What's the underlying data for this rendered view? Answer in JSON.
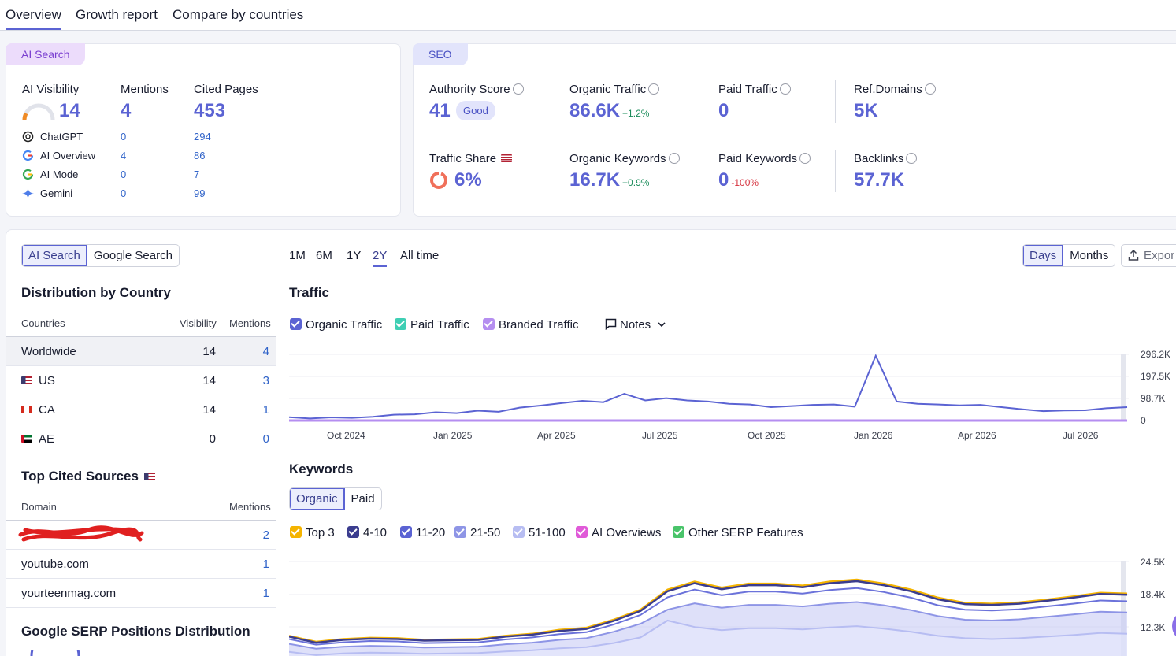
{
  "tabs": [
    "Overview",
    "Growth report",
    "Compare by countries"
  ],
  "ai_card": {
    "pill": "AI Search",
    "visibility_label": "AI Visibility",
    "visibility_value": "14",
    "mentions_label": "Mentions",
    "mentions_value": "4",
    "cited_label": "Cited Pages",
    "cited_value": "453",
    "sources": [
      {
        "name": "ChatGPT",
        "mentions": "0",
        "cited": "294",
        "icon": "chatgpt-icon"
      },
      {
        "name": "AI Overview",
        "mentions": "4",
        "cited": "86",
        "icon": "google-icon"
      },
      {
        "name": "AI Mode",
        "mentions": "0",
        "cited": "7",
        "icon": "google-icon"
      },
      {
        "name": "Gemini",
        "mentions": "0",
        "cited": "99",
        "icon": "gemini-icon"
      }
    ]
  },
  "seo_card": {
    "pill": "SEO",
    "authority_label": "Authority Score",
    "authority_value": "41",
    "authority_badge": "Good",
    "organic_label": "Organic Traffic",
    "organic_value": "86.6K",
    "organic_delta": "+1.2%",
    "paid_label": "Paid Traffic",
    "paid_value": "0",
    "refdomains_label": "Ref.Domains",
    "refdomains_value": "5K",
    "share_label": "Traffic Share",
    "share_value": "6%",
    "okw_label": "Organic Keywords",
    "okw_value": "16.7K",
    "okw_delta": "+0.9%",
    "pkw_label": "Paid Keywords",
    "pkw_value": "0",
    "pkw_delta": "-100%",
    "backlinks_label": "Backlinks",
    "backlinks_value": "57.7K"
  },
  "left": {
    "toggle": [
      "AI Search",
      "Google Search"
    ],
    "dist_title": "Distribution by Country",
    "col_countries": "Countries",
    "col_visibility": "Visibility",
    "col_mentions": "Mentions",
    "countries": [
      {
        "name": "Worldwide",
        "visibility": "14",
        "mentions": "4"
      },
      {
        "name": "US",
        "visibility": "14",
        "mentions": "3"
      },
      {
        "name": "CA",
        "visibility": "14",
        "mentions": "1"
      },
      {
        "name": "AE",
        "visibility": "0",
        "mentions": "0"
      }
    ],
    "sources_title": "Top Cited Sources",
    "col_domain": "Domain",
    "col_src_mentions": "Mentions",
    "domains": [
      {
        "name": "",
        "mentions": "2"
      },
      {
        "name": "youtube.com",
        "mentions": "1"
      },
      {
        "name": "yourteenmag.com",
        "mentions": "1"
      }
    ],
    "serp_title": "Google SERP Positions Distribution"
  },
  "ranges": [
    "1M",
    "6M",
    "1Y",
    "2Y",
    "All time"
  ],
  "view_toggle": [
    "Days",
    "Months"
  ],
  "export_label": "Expor",
  "traffic_title": "Traffic",
  "traffic_legend": [
    "Organic Traffic",
    "Paid Traffic",
    "Branded Traffic"
  ],
  "notes_label": "Notes",
  "traffic_x_ticks": [
    "Oct 2024",
    "Jan 2025",
    "Apr 2025",
    "Jul 2025",
    "Oct 2025",
    "Jan 2026",
    "Apr 2026",
    "Jul 2026"
  ],
  "traffic_y_ticks": [
    "296.2K",
    "197.5K",
    "98.7K",
    "0"
  ],
  "keywords_title": "Keywords",
  "kw_toggle": [
    "Organic",
    "Paid"
  ],
  "kw_legend": [
    {
      "label": "Top 3",
      "color": "#f5b400"
    },
    {
      "label": "4-10",
      "color": "#3b3d8f"
    },
    {
      "label": "11-20",
      "color": "#5b63d3"
    },
    {
      "label": "21-50",
      "color": "#8e95e6"
    },
    {
      "label": "51-100",
      "color": "#b7bdf2"
    },
    {
      "label": "AI Overviews",
      "color": "#e05ad8"
    },
    {
      "label": "Other SERP Features",
      "color": "#49c46a"
    }
  ],
  "kw_y_ticks": [
    "24.5K",
    "18.4K",
    "12.3K"
  ],
  "chart_data": [
    {
      "type": "line",
      "title": "Traffic",
      "series": [
        {
          "name": "Organic Traffic",
          "values": [
            15000,
            9000,
            14000,
            12000,
            17000,
            26000,
            28000,
            37000,
            33000,
            44000,
            39000,
            58000,
            67000,
            78000,
            88000,
            82000,
            120000,
            90000,
            100000,
            90000,
            85000,
            75000,
            72000,
            60000,
            65000,
            70000,
            72000,
            62000,
            290000,
            85000,
            75000,
            72000,
            68000,
            70000,
            60000,
            50000,
            42000,
            45000,
            46000,
            55000,
            60000
          ]
        },
        {
          "name": "Paid Traffic",
          "values": [
            0,
            0,
            0,
            0,
            0,
            0,
            0,
            0,
            0,
            0,
            0,
            0,
            0,
            0,
            0,
            0,
            0,
            0,
            0,
            0,
            0,
            0,
            0,
            0,
            0,
            0,
            0,
            0,
            0,
            0,
            0,
            0,
            0,
            0,
            0,
            0,
            0,
            0,
            0,
            0,
            0
          ]
        },
        {
          "name": "Branded Traffic",
          "values": [
            0,
            0,
            0,
            0,
            0,
            0,
            0,
            0,
            0,
            0,
            0,
            0,
            0,
            0,
            0,
            0,
            0,
            0,
            0,
            0,
            0,
            0,
            0,
            0,
            0,
            0,
            0,
            0,
            0,
            0,
            0,
            0,
            0,
            0,
            0,
            0,
            0,
            0,
            0,
            0,
            0
          ]
        }
      ],
      "ylim": [
        0,
        296200
      ]
    },
    {
      "type": "area",
      "title": "Keywords",
      "series": [
        {
          "name": "Top 3",
          "values": [
            6000,
            4500,
            5200,
            5500,
            5400,
            5000,
            5100,
            5200,
            6000,
            6500,
            7500,
            8000,
            10000,
            12500,
            17500,
            19500,
            18000,
            19000,
            19000,
            18500,
            19500,
            20000,
            19000,
            17500,
            15500,
            14200,
            14000,
            14300,
            15000,
            15800,
            16700,
            16500
          ]
        },
        {
          "name": "4-10",
          "values": [
            5800,
            4300,
            5000,
            5300,
            5200,
            4800,
            4900,
            5000,
            5800,
            6300,
            7200,
            7700,
            9700,
            12200,
            17100,
            19100,
            17600,
            18600,
            18600,
            18100,
            19100,
            19600,
            18600,
            17100,
            15100,
            13900,
            13700,
            14000,
            14700,
            15500,
            16400,
            16200
          ]
        },
        {
          "name": "11-20",
          "values": [
            5200,
            3800,
            4400,
            4700,
            4600,
            4200,
            4300,
            4400,
            5100,
            5600,
            6400,
            6900,
            8800,
            11200,
            15600,
            17500,
            16100,
            17000,
            17000,
            16500,
            17400,
            17900,
            16900,
            15500,
            13600,
            12500,
            12300,
            12600,
            13300,
            14000,
            14800,
            14600
          ]
        },
        {
          "name": "21-50",
          "values": [
            4000,
            2800,
            3300,
            3500,
            3400,
            3100,
            3200,
            3300,
            3900,
            4300,
            5000,
            5400,
            7000,
            9000,
            12500,
            14100,
            13000,
            13700,
            13700,
            13300,
            14000,
            14400,
            13600,
            12400,
            10900,
            10000,
            9800,
            10100,
            10700,
            11300,
            12000,
            11800
          ]
        },
        {
          "name": "51-100",
          "values": [
            2000,
            1200,
            1600,
            1800,
            1700,
            1500,
            1600,
            1700,
            2100,
            2400,
            2900,
            3200,
            4200,
            5600,
            9800,
            8200,
            7400,
            7900,
            7900,
            7600,
            8100,
            8400,
            7800,
            7000,
            6000,
            5400,
            5200,
            5400,
            5800,
            6200,
            6700,
            6500
          ]
        }
      ],
      "ylim": [
        0,
        24500
      ]
    }
  ]
}
